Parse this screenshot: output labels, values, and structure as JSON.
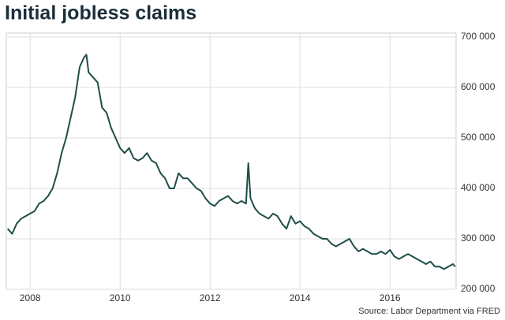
{
  "chart_data": {
    "type": "line",
    "title": "Initial jobless claims",
    "source": "Source: Labor Department via FRED",
    "x": [
      2007.5,
      2007.6,
      2007.7,
      2007.8,
      2007.9,
      2008.0,
      2008.1,
      2008.2,
      2008.3,
      2008.4,
      2008.5,
      2008.6,
      2008.7,
      2008.8,
      2008.9,
      2009.0,
      2009.1,
      2009.2,
      2009.25,
      2009.3,
      2009.4,
      2009.5,
      2009.6,
      2009.7,
      2009.8,
      2009.9,
      2010.0,
      2010.1,
      2010.2,
      2010.3,
      2010.4,
      2010.5,
      2010.6,
      2010.7,
      2010.8,
      2010.9,
      2011.0,
      2011.1,
      2011.2,
      2011.3,
      2011.4,
      2011.5,
      2011.6,
      2011.7,
      2011.8,
      2011.9,
      2012.0,
      2012.1,
      2012.2,
      2012.3,
      2012.4,
      2012.5,
      2012.6,
      2012.7,
      2012.8,
      2012.85,
      2012.9,
      2013.0,
      2013.1,
      2013.2,
      2013.3,
      2013.4,
      2013.5,
      2013.6,
      2013.7,
      2013.8,
      2013.9,
      2014.0,
      2014.1,
      2014.2,
      2014.3,
      2014.4,
      2014.5,
      2014.6,
      2014.7,
      2014.8,
      2014.9,
      2015.0,
      2015.1,
      2015.2,
      2015.3,
      2015.4,
      2015.5,
      2015.6,
      2015.7,
      2015.8,
      2015.9,
      2016.0,
      2016.1,
      2016.2,
      2016.3,
      2016.4,
      2016.5,
      2016.6,
      2016.7,
      2016.8,
      2016.9,
      2017.0,
      2017.1,
      2017.2,
      2017.3,
      2017.4,
      2017.45
    ],
    "series": [
      {
        "color": "#1f4e4a",
        "values": [
          320000,
          310000,
          330000,
          340000,
          345000,
          350000,
          355000,
          370000,
          375000,
          385000,
          400000,
          430000,
          470000,
          500000,
          540000,
          580000,
          640000,
          660000,
          665000,
          630000,
          620000,
          610000,
          560000,
          550000,
          520000,
          500000,
          480000,
          470000,
          480000,
          460000,
          455000,
          460000,
          470000,
          455000,
          450000,
          430000,
          420000,
          400000,
          400000,
          430000,
          420000,
          420000,
          410000,
          400000,
          395000,
          380000,
          370000,
          365000,
          375000,
          380000,
          385000,
          375000,
          370000,
          375000,
          370000,
          450000,
          380000,
          360000,
          350000,
          345000,
          340000,
          350000,
          345000,
          330000,
          320000,
          345000,
          330000,
          335000,
          325000,
          320000,
          310000,
          305000,
          300000,
          300000,
          290000,
          285000,
          290000,
          295000,
          300000,
          285000,
          275000,
          280000,
          275000,
          270000,
          270000,
          275000,
          270000,
          278000,
          265000,
          260000,
          265000,
          270000,
          265000,
          260000,
          255000,
          250000,
          255000,
          245000,
          245000,
          240000,
          245000,
          250000,
          245000
        ]
      }
    ],
    "xlim": [
      2007.47,
      2017.47
    ],
    "xticks": [
      2008,
      2010,
      2012,
      2014,
      2016
    ],
    "ylim": [
      200000,
      700000
    ],
    "yticks": [
      {
        "value": 200000,
        "label": "200 000"
      },
      {
        "value": 300000,
        "label": "300 000"
      },
      {
        "value": 400000,
        "label": "400 000"
      },
      {
        "value": 500000,
        "label": "500 000"
      },
      {
        "value": 600000,
        "label": "600 000"
      },
      {
        "value": 700000,
        "label": "700 000"
      }
    ],
    "grid": true
  }
}
